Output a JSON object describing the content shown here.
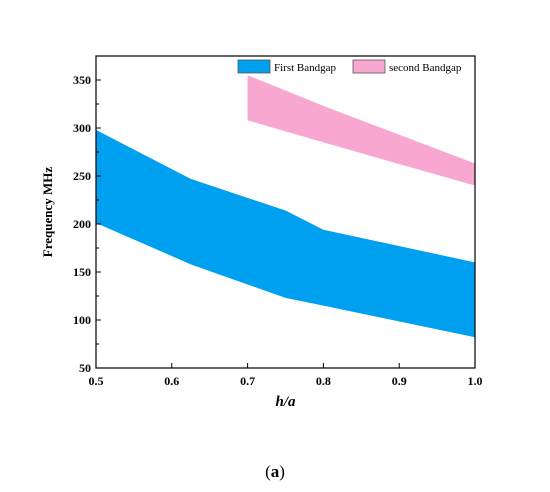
{
  "chart_data": {
    "type": "area",
    "xlabel": "h/a",
    "ylabel": "Frequency MHz",
    "xlim": [
      0.5,
      1.0
    ],
    "ylim": [
      50,
      375
    ],
    "xticks": [
      "0.5",
      "0.6",
      "0.7",
      "0.8",
      "0.9",
      "1.0"
    ],
    "yticks": [
      "50",
      "100",
      "150",
      "200",
      "250",
      "300",
      "350"
    ],
    "grid": false,
    "legend_position": "top-right",
    "series": [
      {
        "name": "First Bandgap",
        "color": "#00a0f0",
        "x": [
          0.5,
          0.625,
          0.75,
          0.8,
          1.0
        ],
        "lower": [
          201,
          158,
          123,
          115,
          82
        ],
        "upper": [
          298,
          247,
          214,
          194,
          160
        ]
      },
      {
        "name": "second Bandgap",
        "color": "#f8a8d0",
        "x": [
          0.7,
          0.8,
          1.0
        ],
        "lower": [
          308,
          285,
          240
        ],
        "upper": [
          355,
          323,
          263
        ]
      }
    ]
  },
  "caption": {
    "open": "(",
    "letter": "a",
    "close": ")"
  }
}
